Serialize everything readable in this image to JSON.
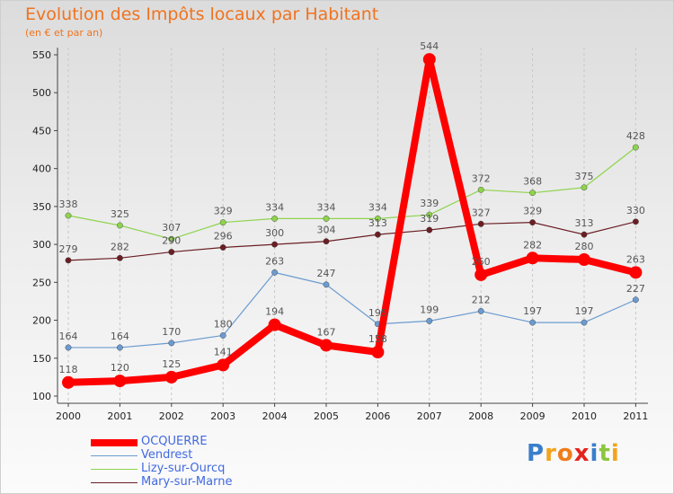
{
  "chart_data": {
    "type": "line",
    "title": "Evolution des Impôts locaux par Habitant",
    "subtitle": "(en € et par an)",
    "x": [
      "2000",
      "2001",
      "2002",
      "2003",
      "2004",
      "2005",
      "2006",
      "2007",
      "2008",
      "2009",
      "2010",
      "2011"
    ],
    "ylim": [
      100,
      550
    ],
    "yticks": [
      100,
      150,
      200,
      250,
      300,
      350,
      400,
      450,
      500,
      550
    ],
    "series": [
      {
        "name": "Mary-sur-Marne",
        "color": "#6b1e24",
        "width": 1.2,
        "marker": 3.2,
        "values": [
          279,
          282,
          290,
          296,
          300,
          304,
          313,
          319,
          327,
          329,
          313,
          330
        ]
      },
      {
        "name": "Lizy-sur-Ourcq",
        "color": "#8ed44d",
        "width": 1.2,
        "marker": 3.2,
        "values": [
          338,
          325,
          307,
          329,
          334,
          334,
          334,
          339,
          372,
          368,
          375,
          428
        ]
      },
      {
        "name": "Vendrest",
        "color": "#6b9bd0",
        "width": 1.2,
        "marker": 3.2,
        "values": [
          164,
          164,
          170,
          180,
          263,
          247,
          195,
          199,
          212,
          197,
          197,
          227
        ]
      },
      {
        "name": "OCQUERRE",
        "color": "#ff0000",
        "width": 8,
        "marker": 7,
        "values": [
          118,
          120,
          125,
          141,
          194,
          167,
          158,
          544,
          260,
          282,
          280,
          263
        ]
      }
    ]
  },
  "legend": [
    "OCQUERRE",
    "Vendrest",
    "Lizy-sur-Ourcq",
    "Mary-sur-Marne"
  ],
  "legend_colors": [
    "#ff0000",
    "#6b9bd0",
    "#8ed44d",
    "#6b1e24"
  ],
  "logo": {
    "text": "Proxiti",
    "letters": [
      "P",
      "r",
      "o",
      "x",
      "i",
      "t",
      "i"
    ],
    "colors": [
      "#3a7ecb",
      "#f5a31c",
      "#ef7d1a",
      "#e5231b",
      "#3a7ecb",
      "#8cc63f",
      "#f5a31c"
    ]
  }
}
